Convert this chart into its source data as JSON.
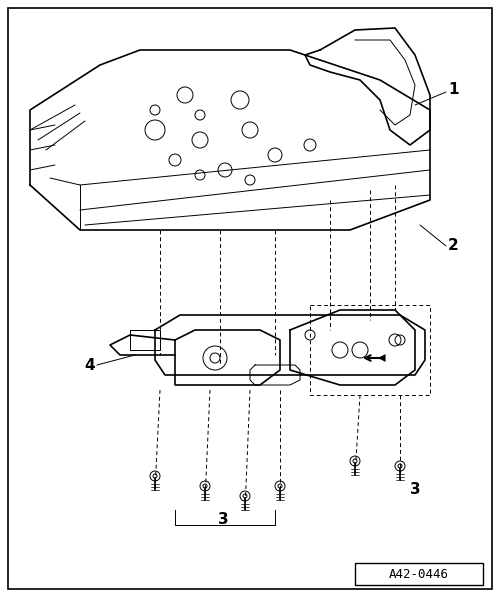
{
  "figure_width": 5.0,
  "figure_height": 5.97,
  "dpi": 100,
  "bg_color": "#ffffff",
  "border_color": "#000000",
  "line_color": "#000000",
  "label_1": "1",
  "label_2": "2",
  "label_3": "3",
  "label_4": "4",
  "ref_code": "A42-0446",
  "font_size_labels": 11,
  "font_size_ref": 9
}
